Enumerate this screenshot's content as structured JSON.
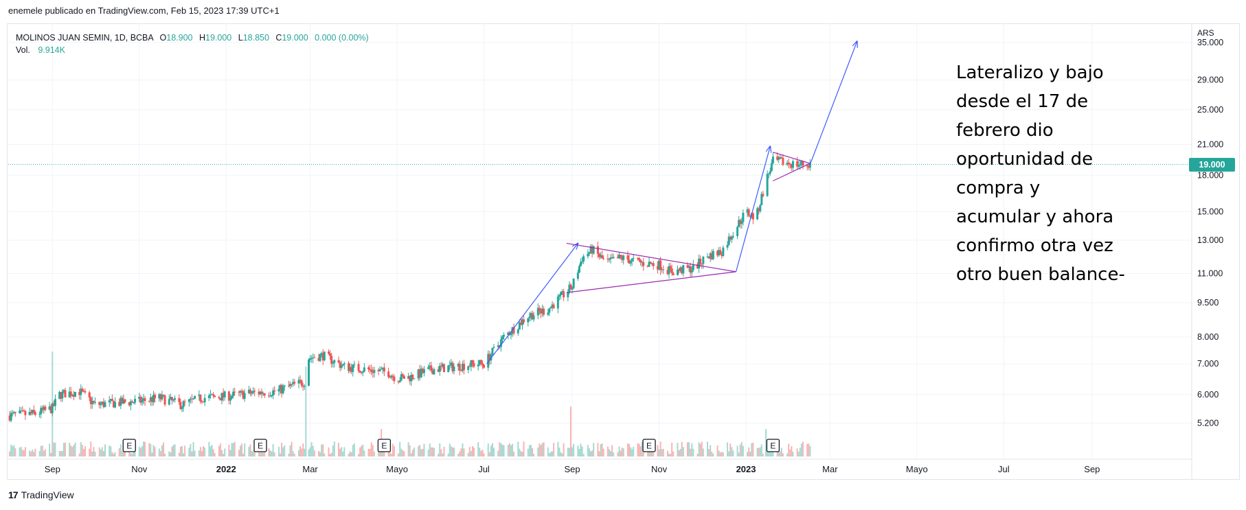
{
  "header": {
    "credit": "enemele publicado en TradingView.com, Feb 15, 2023 17:39 UTC+1"
  },
  "legend": {
    "symbol_line": "MOLINOS JUAN SEMIN, 1D, BCBA",
    "open_label": "O",
    "open": "18.900",
    "high_label": "H",
    "high": "19.000",
    "low_label": "L",
    "low": "18.850",
    "close_label": "C",
    "close": "19.000",
    "change": "0.000 (0.00%)",
    "volume_label": "Vol.",
    "volume": "9.914K"
  },
  "annotation": {
    "lines": [
      "Lateralizo y bajo",
      "desde el 17 de",
      "febrero dio",
      "oportunidad de",
      "compra y",
      "acumular y ahora",
      "confirmo otra vez",
      "otro buen balance-"
    ]
  },
  "price_badge": "19.000",
  "footer": {
    "brand": "TradingView",
    "logo_glyph": "17"
  },
  "colors": {
    "up": "#26a69a",
    "down": "#ef5350",
    "drawing": "#3d5afe",
    "triangle": "#9c27b0",
    "price_line": "#26a69a",
    "grid": "#f0f3fa"
  },
  "chart_data": {
    "type": "candlestick",
    "title": "MOLINOS JUAN SEMIN, 1D, BCBA",
    "currency": "ARS",
    "y_scale": "log",
    "ylim": [
      4.4,
      38
    ],
    "y_ticks": [
      "35.000",
      "29.000",
      "25.000",
      "21.000",
      "18.000",
      "15.000",
      "13.000",
      "11.000",
      "9.500",
      "8.000",
      "7.000",
      "6.000",
      "5.200"
    ],
    "x_ticks": [
      {
        "label": "Sep",
        "date": "2021-09-01",
        "bold": false
      },
      {
        "label": "Nov",
        "date": "2021-11-01",
        "bold": false
      },
      {
        "label": "2022",
        "date": "2022-01-01",
        "bold": true
      },
      {
        "label": "Mar",
        "date": "2022-03-01",
        "bold": false
      },
      {
        "label": "Mayo",
        "date": "2022-05-01",
        "bold": false
      },
      {
        "label": "Jul",
        "date": "2022-07-01",
        "bold": false
      },
      {
        "label": "Sep",
        "date": "2022-09-01",
        "bold": false
      },
      {
        "label": "Nov",
        "date": "2022-11-01",
        "bold": false
      },
      {
        "label": "2023",
        "date": "2023-01-01",
        "bold": true
      },
      {
        "label": "Mar",
        "date": "2023-03-01",
        "bold": false
      },
      {
        "label": "Mayo",
        "date": "2023-05-01",
        "bold": false
      },
      {
        "label": "Jul",
        "date": "2023-07-01",
        "bold": false
      },
      {
        "label": "Sep",
        "date": "2023-09-01",
        "bold": false
      }
    ],
    "x_range": [
      "2021-08-01",
      "2023-11-10"
    ],
    "last_price": 19.0,
    "price_path": [
      [
        "2021-08-01",
        5.4
      ],
      [
        "2021-08-20",
        5.45
      ],
      [
        "2021-09-01",
        5.6
      ],
      [
        "2021-09-06",
        6.0
      ],
      [
        "2021-09-20",
        6.1
      ],
      [
        "2021-10-01",
        5.7
      ],
      [
        "2021-10-15",
        5.75
      ],
      [
        "2021-11-01",
        5.8
      ],
      [
        "2021-11-15",
        5.9
      ],
      [
        "2021-12-01",
        5.7
      ],
      [
        "2021-12-15",
        5.9
      ],
      [
        "2022-01-01",
        5.95
      ],
      [
        "2022-01-20",
        6.05
      ],
      [
        "2022-02-05",
        6.1
      ],
      [
        "2022-02-18",
        6.3
      ],
      [
        "2022-02-25",
        6.4
      ],
      [
        "2022-02-27",
        7.2
      ],
      [
        "2022-03-10",
        7.3
      ],
      [
        "2022-03-25",
        6.9
      ],
      [
        "2022-04-10",
        6.8
      ],
      [
        "2022-04-25",
        6.7
      ],
      [
        "2022-05-01",
        6.5
      ],
      [
        "2022-05-10",
        6.55
      ],
      [
        "2022-05-25",
        6.8
      ],
      [
        "2022-06-10",
        6.9
      ],
      [
        "2022-06-25",
        7.0
      ],
      [
        "2022-07-01",
        7.0
      ],
      [
        "2022-07-15",
        8.0
      ],
      [
        "2022-08-01",
        8.9
      ],
      [
        "2022-08-15",
        9.2
      ],
      [
        "2022-09-01",
        10.3
      ],
      [
        "2022-09-08",
        11.9
      ],
      [
        "2022-09-15",
        12.4
      ],
      [
        "2022-09-25",
        11.6
      ],
      [
        "2022-10-05",
        11.9
      ],
      [
        "2022-10-20",
        11.6
      ],
      [
        "2022-11-01",
        11.5
      ],
      [
        "2022-11-10",
        11.1
      ],
      [
        "2022-11-25",
        11.3
      ],
      [
        "2022-12-05",
        12.0
      ],
      [
        "2022-12-15",
        12.3
      ],
      [
        "2022-12-22",
        13.4
      ],
      [
        "2023-01-01",
        15.0
      ],
      [
        "2023-01-08",
        14.5
      ],
      [
        "2023-01-15",
        17.5
      ],
      [
        "2023-01-20",
        19.3
      ],
      [
        "2023-01-28",
        19.2
      ],
      [
        "2023-02-05",
        19.0
      ],
      [
        "2023-02-15",
        19.0
      ]
    ],
    "volume": {
      "label": "Vol.",
      "spikes": [
        {
          "date": "2021-09-01",
          "value": 2.1,
          "up": true
        },
        {
          "date": "2022-02-26",
          "value": 1.8,
          "up": true
        },
        {
          "date": "2022-04-20",
          "value": 0.55,
          "up": false
        },
        {
          "date": "2022-08-31",
          "value": 1.0,
          "up": false
        },
        {
          "date": "2023-01-15",
          "value": 0.55,
          "up": true
        }
      ],
      "ylim": [
        0,
        2.2
      ]
    },
    "earnings_markers": [
      "2021-10-25",
      "2022-01-25",
      "2022-04-22",
      "2022-10-25",
      "2023-01-20"
    ],
    "earnings_label": "E",
    "drawings": {
      "arrows": [
        {
          "points": [
            [
              "2022-07-03",
              7.0
            ],
            [
              "2022-09-05",
              12.8
            ]
          ]
        },
        {
          "points": [
            [
              "2022-12-25",
              11.1
            ],
            [
              "2023-01-18",
              20.8
            ]
          ]
        },
        {
          "points": [
            [
              "2023-02-15",
              19.0
            ],
            [
              "2023-03-20",
              35.2
            ]
          ]
        }
      ],
      "triangles": [
        {
          "upper": [
            [
              "2022-08-28",
              12.8
            ],
            [
              "2022-12-25",
              11.1
            ]
          ],
          "lower": [
            [
              "2022-08-28",
              10.0
            ],
            [
              "2022-12-25",
              11.1
            ]
          ]
        },
        {
          "upper": [
            [
              "2023-01-20",
              20.2
            ],
            [
              "2023-02-15",
              19.1
            ]
          ],
          "lower": [
            [
              "2023-01-20",
              17.5
            ],
            [
              "2023-02-15",
              19.1
            ]
          ]
        }
      ]
    }
  }
}
